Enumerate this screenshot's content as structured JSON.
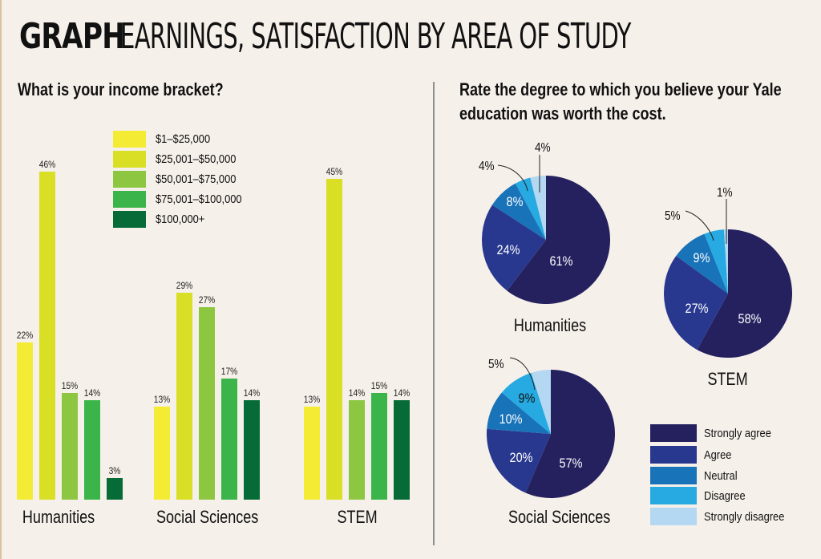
{
  "header": {
    "kicker": "GRAPH",
    "headline": "EARNINGS, SATISFACTION BY AREA OF STUDY"
  },
  "left_panel": {
    "question": "What is your income bracket?"
  },
  "right_panel": {
    "question_line1": "Rate the degree to which you believe your Yale",
    "question_line2": "education was worth the cost."
  },
  "colors": {
    "background": "#f6f0ea",
    "income": [
      "#f4ec34",
      "#d9df24",
      "#8dc641",
      "#3bb44a",
      "#066b37"
    ],
    "satisfaction": [
      "#25215f",
      "#28388f",
      "#1873b9",
      "#27a9e1",
      "#b4d8f1"
    ]
  },
  "chart_data": [
    {
      "type": "bar",
      "title": "What is your income bracket?",
      "categories": [
        "Humanities",
        "Social Sciences",
        "STEM"
      ],
      "series": [
        {
          "name": "$1–$25,000",
          "values": [
            22,
            13,
            13
          ]
        },
        {
          "name": "$25,001–$50,000",
          "values": [
            46,
            29,
            45
          ]
        },
        {
          "name": "$50,001–$75,000",
          "values": [
            15,
            27,
            14
          ]
        },
        {
          "name": "$75,001–$100,000",
          "values": [
            14,
            17,
            15
          ]
        },
        {
          "name": "$100,000+",
          "values": [
            3,
            14,
            14
          ]
        }
      ],
      "value_suffix": "%",
      "xlabel": "",
      "ylabel": "",
      "ylim": [
        0,
        50
      ],
      "grid": false,
      "legend_position": "top-center"
    },
    {
      "type": "pie",
      "title": "Rate the degree to which you believe your Yale education was worth the cost.",
      "labels": [
        "Strongly agree",
        "Agree",
        "Neutral",
        "Disagree",
        "Strongly disagree"
      ],
      "pies": [
        {
          "name": "Humanities",
          "values": [
            61,
            24,
            8,
            4,
            4
          ]
        },
        {
          "name": "STEM",
          "values": [
            58,
            27,
            9,
            5,
            1
          ]
        },
        {
          "name": "Social Sciences",
          "values": [
            57,
            20,
            10,
            9,
            5
          ]
        }
      ],
      "value_suffix": "%",
      "legend_position": "bottom-right"
    }
  ]
}
